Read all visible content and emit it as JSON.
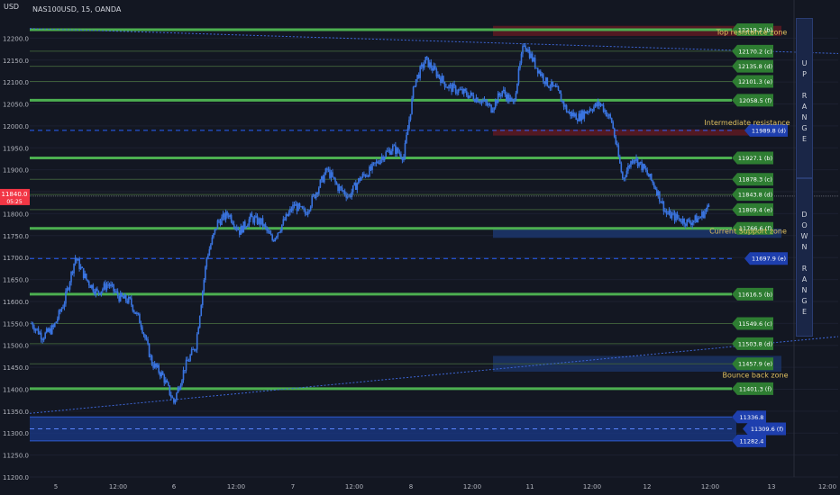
{
  "header": {
    "axis_unit": "USD",
    "symbol": "NAS100USD, 15, OANDA"
  },
  "price_marker": {
    "value": "11840.0",
    "sub": "05:25"
  },
  "range_labels": {
    "up": [
      "U",
      "P",
      "",
      "R",
      "A",
      "N",
      "G",
      "E"
    ],
    "down": [
      "D",
      "O",
      "W",
      "N",
      "",
      "R",
      "A",
      "N",
      "G",
      "E"
    ]
  },
  "colors": {
    "background": "#131722",
    "candle": "#3a74e0",
    "green_level": "#4caf50",
    "blue_dashed": "#2962ff",
    "resist_zone": "#5a1a22",
    "support_zone": "#1c3468",
    "annotation": "#e0c060"
  },
  "chart_data": {
    "type": "candlestick",
    "title": "NAS100USD, 15, OANDA",
    "ylim": [
      11200,
      12250
    ],
    "y_ticks": [
      "12200.0",
      "12150.0",
      "12100.0",
      "12050.0",
      "12000.0",
      "11950.0",
      "11900.0",
      "11850.0",
      "11800.0",
      "11750.0",
      "11700.0",
      "11650.0",
      "11600.0",
      "11550.0",
      "11500.0",
      "11450.0",
      "11400.0",
      "11350.0",
      "11300.0",
      "11250.0",
      "11200.0"
    ],
    "x_ticks": [
      "5",
      "12:00",
      "6",
      "12:00",
      "7",
      "12:00",
      "8",
      "12:00",
      "11",
      "12:00",
      "12",
      "12:00",
      "13",
      "12:00"
    ],
    "price_path": [
      11550,
      11520,
      11540,
      11600,
      11700,
      11650,
      11620,
      11640,
      11610,
      11600,
      11550,
      11460,
      11430,
      11370,
      11450,
      11500,
      11700,
      11780,
      11800,
      11760,
      11790,
      11780,
      11740,
      11780,
      11820,
      11800,
      11850,
      11900,
      11860,
      11840,
      11880,
      11900,
      11930,
      11950,
      11930,
      12100,
      12150,
      12120,
      12090,
      12080,
      12070,
      12060,
      12040,
      12080,
      12050,
      12190,
      12140,
      12100,
      12080,
      12030,
      12020,
      12040,
      12050,
      12010,
      11880,
      11930,
      11900,
      11860,
      11800,
      11790,
      11780,
      11790,
      11820
    ],
    "levels": [
      {
        "value": 12219.2,
        "label": "12219.2 (b)",
        "style": "green"
      },
      {
        "value": 12170.2,
        "label": "12170.2 (c)",
        "style": "thin"
      },
      {
        "value": 12135.8,
        "label": "12135.8 (d)",
        "style": "thin"
      },
      {
        "value": 12101.3,
        "label": "12101.3 (e)",
        "style": "thin"
      },
      {
        "value": 12058.5,
        "label": "12058.5 (f)",
        "style": "green"
      },
      {
        "value": 11989.8,
        "label": "11989.8 (d)",
        "style": "dashed"
      },
      {
        "value": 11927.1,
        "label": "11927.1 (b)",
        "style": "green"
      },
      {
        "value": 11878.3,
        "label": "11878.3 (c)",
        "style": "thin"
      },
      {
        "value": 11843.8,
        "label": "11843.8 (d)",
        "style": "thin"
      },
      {
        "value": 11809.4,
        "label": "11809.4 (e)",
        "style": "thin"
      },
      {
        "value": 11766.6,
        "label": "11766.6 (f)",
        "style": "green"
      },
      {
        "value": 11697.9,
        "label": "11697.9 (e)",
        "style": "dashed"
      },
      {
        "value": 11616.5,
        "label": "11616.5 (b)",
        "style": "green"
      },
      {
        "value": 11549.6,
        "label": "11549.6 (c)",
        "style": "thin"
      },
      {
        "value": 11503.8,
        "label": "11503.8 (d)",
        "style": "thin"
      },
      {
        "value": 11457.9,
        "label": "11457.9 (e)",
        "style": "thin"
      },
      {
        "value": 11401.3,
        "label": "11401.3 (f)",
        "style": "green"
      },
      {
        "value": 11336.8,
        "label": "11336.8",
        "style": "blue"
      },
      {
        "value": 11309.6,
        "label": "11309.6 (f)",
        "style": "dashed-blue"
      },
      {
        "value": 11282.4,
        "label": "11282.4",
        "style": "blue"
      }
    ],
    "annotations": [
      "Top resistance zone",
      "Intermediate resistance",
      "Current Support zone",
      "Bounce back zone"
    ]
  }
}
